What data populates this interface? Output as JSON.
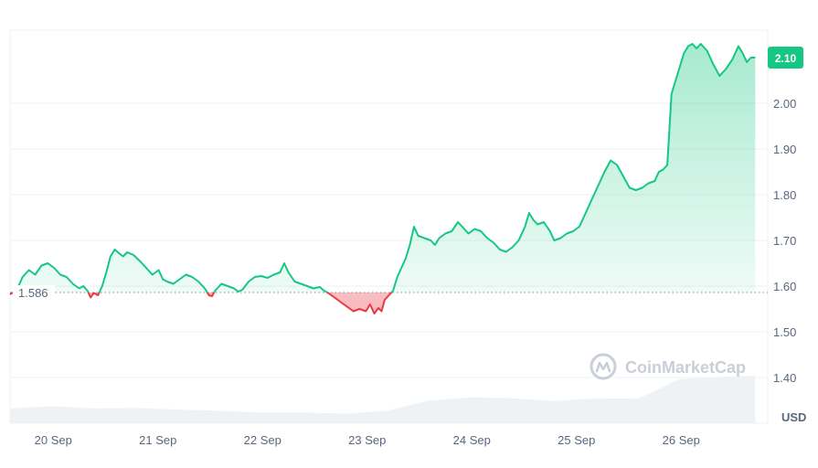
{
  "chart_data": {
    "type": "area",
    "baseline": 1.586,
    "baseline_label": "1.586",
    "current_price": 2.1,
    "current_price_label": "2.10",
    "currency_label": "USD",
    "ylim": [
      1.3,
      2.16
    ],
    "y_ticks": [
      1.4,
      1.5,
      1.6,
      1.7,
      1.8,
      1.9,
      2.0
    ],
    "y_tick_labels": [
      "1.40",
      "1.50",
      "1.60",
      "1.70",
      "1.80",
      "1.90",
      "2.00"
    ],
    "x_range": [
      0,
      7.24
    ],
    "x_ticks": [
      0.5,
      1.5,
      2.5,
      3.5,
      4.5,
      5.5,
      6.5
    ],
    "x_tick_labels": [
      "20 Sep",
      "21 Sep",
      "22 Sep",
      "23 Sep",
      "24 Sep",
      "25 Sep",
      "26 Sep"
    ],
    "grid": true,
    "colors": {
      "up": "#16c784",
      "down": "#ea3943",
      "grid": "#eff2f5",
      "volume": "#eff2f5",
      "axis_text": "#58667e"
    },
    "watermark": "CoinMarketCap",
    "watermark_icon": "coinmarketcap-logo-icon",
    "series": [
      {
        "values": [
          [
            0.0,
            1.582
          ],
          [
            0.04,
            1.588
          ],
          [
            0.08,
            1.6
          ],
          [
            0.12,
            1.62
          ],
          [
            0.18,
            1.635
          ],
          [
            0.24,
            1.625
          ],
          [
            0.3,
            1.645
          ],
          [
            0.36,
            1.65
          ],
          [
            0.42,
            1.64
          ],
          [
            0.48,
            1.625
          ],
          [
            0.54,
            1.62
          ],
          [
            0.6,
            1.605
          ],
          [
            0.66,
            1.595
          ],
          [
            0.7,
            1.6
          ],
          [
            0.74,
            1.59
          ],
          [
            0.77,
            1.575
          ],
          [
            0.8,
            1.585
          ],
          [
            0.84,
            1.58
          ],
          [
            0.88,
            1.6
          ],
          [
            0.92,
            1.63
          ],
          [
            0.96,
            1.665
          ],
          [
            1.0,
            1.68
          ],
          [
            1.04,
            1.672
          ],
          [
            1.08,
            1.665
          ],
          [
            1.12,
            1.674
          ],
          [
            1.18,
            1.668
          ],
          [
            1.24,
            1.655
          ],
          [
            1.3,
            1.64
          ],
          [
            1.36,
            1.625
          ],
          [
            1.42,
            1.635
          ],
          [
            1.46,
            1.615
          ],
          [
            1.5,
            1.61
          ],
          [
            1.56,
            1.605
          ],
          [
            1.62,
            1.615
          ],
          [
            1.68,
            1.625
          ],
          [
            1.74,
            1.62
          ],
          [
            1.8,
            1.61
          ],
          [
            1.86,
            1.595
          ],
          [
            1.9,
            1.58
          ],
          [
            1.93,
            1.578
          ],
          [
            1.96,
            1.59
          ],
          [
            2.02,
            1.605
          ],
          [
            2.08,
            1.6
          ],
          [
            2.14,
            1.595
          ],
          [
            2.18,
            1.588
          ],
          [
            2.22,
            1.592
          ],
          [
            2.28,
            1.61
          ],
          [
            2.34,
            1.62
          ],
          [
            2.4,
            1.622
          ],
          [
            2.46,
            1.618
          ],
          [
            2.52,
            1.625
          ],
          [
            2.58,
            1.63
          ],
          [
            2.62,
            1.65
          ],
          [
            2.66,
            1.63
          ],
          [
            2.72,
            1.61
          ],
          [
            2.78,
            1.605
          ],
          [
            2.84,
            1.6
          ],
          [
            2.9,
            1.595
          ],
          [
            2.96,
            1.598
          ],
          [
            3.0,
            1.59
          ],
          [
            3.04,
            1.585
          ],
          [
            3.1,
            1.575
          ],
          [
            3.16,
            1.565
          ],
          [
            3.22,
            1.555
          ],
          [
            3.28,
            1.545
          ],
          [
            3.34,
            1.55
          ],
          [
            3.4,
            1.545
          ],
          [
            3.44,
            1.56
          ],
          [
            3.48,
            1.54
          ],
          [
            3.52,
            1.552
          ],
          [
            3.55,
            1.545
          ],
          [
            3.58,
            1.57
          ],
          [
            3.62,
            1.58
          ],
          [
            3.66,
            1.59
          ],
          [
            3.7,
            1.62
          ],
          [
            3.74,
            1.64
          ],
          [
            3.78,
            1.66
          ],
          [
            3.82,
            1.69
          ],
          [
            3.86,
            1.73
          ],
          [
            3.9,
            1.71
          ],
          [
            3.96,
            1.705
          ],
          [
            4.02,
            1.7
          ],
          [
            4.06,
            1.69
          ],
          [
            4.1,
            1.705
          ],
          [
            4.16,
            1.715
          ],
          [
            4.22,
            1.72
          ],
          [
            4.28,
            1.74
          ],
          [
            4.32,
            1.73
          ],
          [
            4.38,
            1.715
          ],
          [
            4.44,
            1.725
          ],
          [
            4.5,
            1.72
          ],
          [
            4.56,
            1.705
          ],
          [
            4.62,
            1.695
          ],
          [
            4.68,
            1.68
          ],
          [
            4.74,
            1.675
          ],
          [
            4.8,
            1.685
          ],
          [
            4.86,
            1.7
          ],
          [
            4.92,
            1.73
          ],
          [
            4.96,
            1.76
          ],
          [
            5.0,
            1.745
          ],
          [
            5.04,
            1.735
          ],
          [
            5.1,
            1.74
          ],
          [
            5.16,
            1.72
          ],
          [
            5.2,
            1.7
          ],
          [
            5.26,
            1.705
          ],
          [
            5.32,
            1.715
          ],
          [
            5.38,
            1.72
          ],
          [
            5.44,
            1.73
          ],
          [
            5.5,
            1.76
          ],
          [
            5.56,
            1.79
          ],
          [
            5.62,
            1.82
          ],
          [
            5.68,
            1.85
          ],
          [
            5.74,
            1.875
          ],
          [
            5.8,
            1.865
          ],
          [
            5.86,
            1.84
          ],
          [
            5.92,
            1.815
          ],
          [
            5.98,
            1.81
          ],
          [
            6.04,
            1.815
          ],
          [
            6.1,
            1.825
          ],
          [
            6.16,
            1.83
          ],
          [
            6.2,
            1.85
          ],
          [
            6.24,
            1.855
          ],
          [
            6.28,
            1.865
          ],
          [
            6.32,
            2.02
          ],
          [
            6.36,
            2.05
          ],
          [
            6.4,
            2.08
          ],
          [
            6.44,
            2.11
          ],
          [
            6.48,
            2.125
          ],
          [
            6.52,
            2.13
          ],
          [
            6.56,
            2.12
          ],
          [
            6.6,
            2.13
          ],
          [
            6.66,
            2.115
          ],
          [
            6.72,
            2.085
          ],
          [
            6.78,
            2.06
          ],
          [
            6.84,
            2.075
          ],
          [
            6.9,
            2.095
          ],
          [
            6.96,
            2.125
          ],
          [
            7.0,
            2.11
          ],
          [
            7.04,
            2.09
          ],
          [
            7.08,
            2.1
          ],
          [
            7.12,
            2.1
          ]
        ]
      }
    ],
    "volume": [
      [
        0.0,
        0.26
      ],
      [
        0.4,
        0.3
      ],
      [
        0.8,
        0.26
      ],
      [
        1.2,
        0.27
      ],
      [
        1.6,
        0.24
      ],
      [
        2.0,
        0.22
      ],
      [
        2.4,
        0.19
      ],
      [
        2.8,
        0.19
      ],
      [
        3.2,
        0.17
      ],
      [
        3.6,
        0.22
      ],
      [
        4.0,
        0.4
      ],
      [
        4.4,
        0.46
      ],
      [
        4.8,
        0.44
      ],
      [
        5.2,
        0.39
      ],
      [
        5.6,
        0.44
      ],
      [
        6.0,
        0.43
      ],
      [
        6.4,
        0.78
      ],
      [
        6.8,
        0.82
      ],
      [
        7.12,
        0.84
      ]
    ]
  }
}
